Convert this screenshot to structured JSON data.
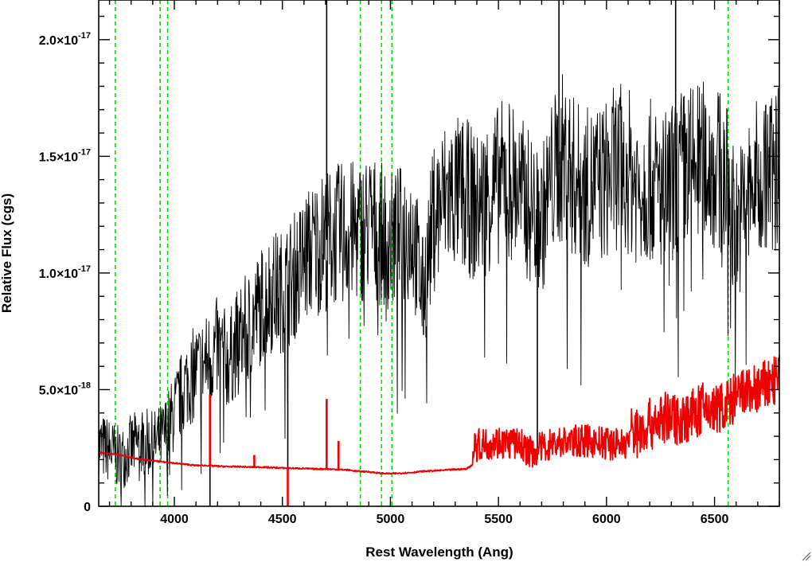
{
  "chart_data": {
    "type": "line",
    "title": "",
    "xlabel": "Rest Wavelength (Ang)",
    "ylabel": "Relative Flux (cgs)",
    "xlim": [
      3650,
      6800
    ],
    "ylim": [
      0,
      2.17e-17
    ],
    "x_ticks": [
      {
        "value": 4000,
        "label": "4000"
      },
      {
        "value": 4500,
        "label": "4500"
      },
      {
        "value": 5000,
        "label": "5000"
      },
      {
        "value": 5500,
        "label": "5500"
      },
      {
        "value": 6000,
        "label": "6000"
      },
      {
        "value": 6500,
        "label": "6500"
      }
    ],
    "y_ticks": [
      {
        "value": 0,
        "label": "0",
        "exp": ""
      },
      {
        "value": 5e-18,
        "label": "5.0×10",
        "exp": "-18"
      },
      {
        "value": 1e-17,
        "label": "1.0×10",
        "exp": "-17"
      },
      {
        "value": 1.5e-17,
        "label": "1.5×10",
        "exp": "-17"
      },
      {
        "value": 2e-17,
        "label": "2.0×10",
        "exp": "-17"
      }
    ],
    "x_minor_step": 100,
    "y_minor_step": 1e-18,
    "vlines": [
      3727,
      3934,
      3969,
      4861,
      4959,
      5007,
      6563
    ],
    "vline_color": "#00dd00",
    "series": [
      {
        "role": "spectrum",
        "color": "#000000",
        "x": [
          3650,
          3700,
          3750,
          3800,
          3850,
          3900,
          3950,
          4000,
          4050,
          4100,
          4150,
          4200,
          4250,
          4300,
          4350,
          4400,
          4450,
          4500,
          4550,
          4600,
          4650,
          4700,
          4750,
          4800,
          4850,
          4900,
          4950,
          5000,
          5050,
          5100,
          5150,
          5200,
          5250,
          5300,
          5350,
          5400,
          5450,
          5500,
          5550,
          5600,
          5650,
          5700,
          5750,
          5800,
          5850,
          5900,
          5950,
          6000,
          6050,
          6100,
          6150,
          6200,
          6250,
          6300,
          6350,
          6400,
          6450,
          6500,
          6550,
          6600,
          6650,
          6700,
          6750,
          6800
        ],
        "y": [
          2.6e-18,
          2.4e-18,
          2e-18,
          2.5e-18,
          2.8e-18,
          2.6e-18,
          3e-18,
          4e-18,
          5.2e-18,
          5.8e-18,
          6.2e-18,
          6.8e-18,
          6.2e-18,
          7.2e-18,
          7.8e-18,
          8.6e-18,
          9.2e-18,
          9.2e-18,
          9.8e-18,
          1.06e-17,
          1.11e-17,
          1.14e-17,
          1.16e-17,
          1.18e-17,
          1.17e-17,
          1.21e-17,
          1.17e-17,
          1.13e-17,
          1.16e-17,
          1.19e-17,
          9e-18,
          1.24e-17,
          1.32e-17,
          1.34e-17,
          1.33e-17,
          1.27e-17,
          1.34e-17,
          1.38e-17,
          1.42e-17,
          1.34e-17,
          1.28e-17,
          1.22e-17,
          1.41e-17,
          1.5e-17,
          1.41e-17,
          1.36e-17,
          1.38e-17,
          1.4e-17,
          1.46e-17,
          1.44e-17,
          1.37e-17,
          1.4e-17,
          1.34e-17,
          1.38e-17,
          1.44e-17,
          1.46e-17,
          1.47e-17,
          1.45e-17,
          1.41e-17,
          1.2e-17,
          1.31e-17,
          1.4e-17,
          1.43e-17,
          1.46e-17
        ],
        "spikes": [
          {
            "x": 4165,
            "y": 0
          },
          {
            "x": 4525,
            "y": 0
          },
          {
            "x": 4705,
            "y": 2.17e-17
          },
          {
            "x": 5680,
            "y": 2e-18
          },
          {
            "x": 5780,
            "y": 2.17e-17
          },
          {
            "x": 6320,
            "y": 2.17e-17
          }
        ]
      },
      {
        "role": "error",
        "color": "#ee0000",
        "x": [
          3650,
          3700,
          3750,
          3800,
          3850,
          3900,
          3950,
          4000,
          4050,
          4100,
          4150,
          4200,
          4250,
          4300,
          4350,
          4400,
          4450,
          4500,
          4550,
          4600,
          4650,
          4700,
          4750,
          4800,
          4850,
          4900,
          4950,
          5000,
          5050,
          5100,
          5150,
          5200,
          5250,
          5300,
          5350,
          5400,
          5450,
          5500,
          5550,
          5600,
          5650,
          5700,
          5750,
          5800,
          5850,
          5900,
          5950,
          6000,
          6050,
          6100,
          6150,
          6200,
          6250,
          6300,
          6350,
          6400,
          6450,
          6500,
          6550,
          6600,
          6650,
          6700,
          6750,
          6800
        ],
        "y": [
          2.3e-18,
          2.25e-18,
          2.2e-18,
          2.1e-18,
          2e-18,
          1.95e-18,
          1.9e-18,
          1.85e-18,
          1.8e-18,
          1.75e-18,
          1.75e-18,
          1.72e-18,
          1.7e-18,
          1.7e-18,
          1.68e-18,
          1.68e-18,
          1.66e-18,
          1.64e-18,
          1.63e-18,
          1.62e-18,
          1.6e-18,
          1.6e-18,
          1.58e-18,
          1.56e-18,
          1.5e-18,
          1.48e-18,
          1.42e-18,
          1.4e-18,
          1.42e-18,
          1.45e-18,
          1.5e-18,
          1.52e-18,
          1.55e-18,
          1.58e-18,
          1.6e-18,
          1.9e-18,
          2e-18,
          2.05e-18,
          2e-18,
          1.95e-18,
          1.6e-18,
          1.8e-18,
          2e-18,
          2.05e-18,
          2.1e-18,
          2.1e-18,
          2.05e-18,
          2e-18,
          1.98e-18,
          2e-18,
          2.1e-18,
          2.4e-18,
          2.6e-18,
          2.7e-18,
          2.6e-18,
          2.8e-18,
          3.1e-18,
          3e-18,
          3.2e-18,
          3.5e-18,
          3.8e-18,
          3.9e-18,
          4.1e-18,
          4.3e-18
        ],
        "spikes": [
          {
            "x": 4165,
            "y": 4.8e-18
          },
          {
            "x": 4370,
            "y": 2.2e-18
          },
          {
            "x": 4525,
            "y": 0
          },
          {
            "x": 4705,
            "y": 4.6e-18
          },
          {
            "x": 4760,
            "y": 2.8e-18
          }
        ]
      }
    ]
  }
}
